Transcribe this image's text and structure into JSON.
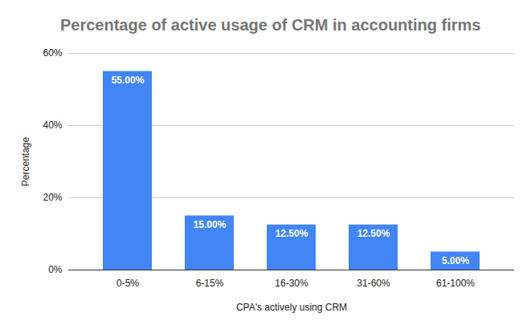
{
  "chart_data": {
    "type": "bar",
    "title": "Percentage of active usage of CRM in accounting firms",
    "x_label": "CPA's actively using CRM",
    "y_label": "Percentage",
    "categories": [
      "0-5%",
      "6-15%",
      "16-30%",
      "31-60%",
      "61-100%"
    ],
    "values": [
      55,
      15,
      12.5,
      12.5,
      5
    ],
    "value_labels": [
      "55.00%",
      "15.00%",
      "12.50%",
      "12.50%",
      "5.00%"
    ],
    "color": "#4285f4",
    "ylim": [
      0,
      60
    ],
    "yticks": [
      {
        "value": 0,
        "label": "0%"
      },
      {
        "value": 20,
        "label": "20%"
      },
      {
        "value": 40,
        "label": "40%"
      },
      {
        "value": 60,
        "label": "60%"
      }
    ],
    "grid": true,
    "data_labels": true
  }
}
